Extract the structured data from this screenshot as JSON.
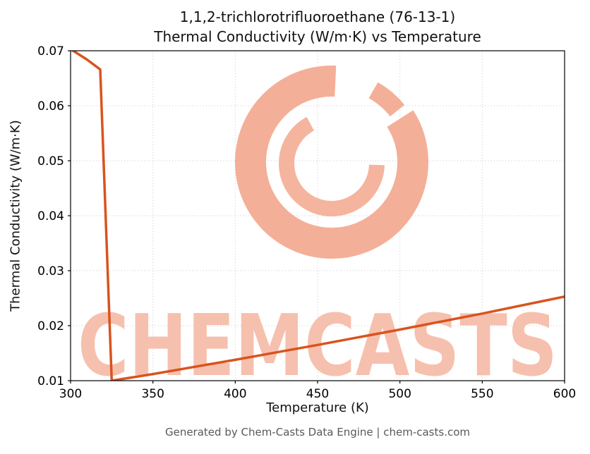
{
  "chart_data": {
    "type": "line",
    "title": "1,1,2-trichlorotrifluoroethane (76-13-1) Thermal Conductivity (W/m·K) vs Temperature",
    "title_lines": [
      "1,1,2-trichlorotrifluoroethane (76-13-1)",
      "Thermal Conductivity (W/m·K) vs Temperature"
    ],
    "xlabel": "Temperature (K)",
    "ylabel": "Thermal Conductivity (W/m·K)",
    "xlim": [
      300,
      600
    ],
    "ylim": [
      0.01,
      0.07
    ],
    "xticks": [
      300,
      350,
      400,
      450,
      500,
      550,
      600
    ],
    "yticks": [
      0.01,
      0.02,
      0.03,
      0.04,
      0.05,
      0.06,
      0.07
    ],
    "grid": true,
    "legend": false,
    "series": [
      {
        "name": "thermal_conductivity",
        "color": "#d9531e",
        "points": [
          [
            300,
            0.0703
          ],
          [
            310,
            0.0684
          ],
          [
            318,
            0.0666
          ],
          [
            325,
            0.01
          ],
          [
            350,
            0.0112
          ],
          [
            400,
            0.0138
          ],
          [
            450,
            0.0165
          ],
          [
            500,
            0.0193
          ],
          [
            550,
            0.0222
          ],
          [
            600,
            0.0253
          ]
        ]
      }
    ],
    "watermark": {
      "text": "CHEMCASTS",
      "text_color": "#f6c0ae",
      "logo_color": "#f2a186"
    }
  },
  "footer": {
    "text": "Generated by Chem-Casts Data Engine | chem-casts.com"
  },
  "colors": {
    "grid": "#c9c9c9",
    "spine": "#000000",
    "tick_label": "#000000",
    "footer_text": "#595959"
  }
}
